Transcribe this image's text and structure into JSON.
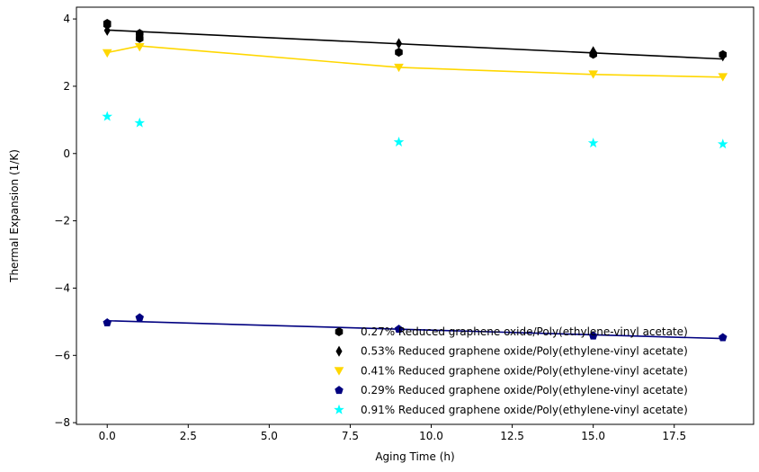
{
  "chart_data": {
    "type": "scatter",
    "xlabel": "Aging Time (h)",
    "ylabel": "Thermal Expansion (1/K)",
    "xlim": [
      -0.95,
      19.95
    ],
    "ylim": [
      -8.05,
      4.35
    ],
    "xticks": [
      0.0,
      2.5,
      5.0,
      7.5,
      10.0,
      12.5,
      15.0,
      17.5
    ],
    "xtick_labels": [
      "0.0",
      "2.5",
      "5.0",
      "7.5",
      "10.0",
      "12.5",
      "15.0",
      "17.5"
    ],
    "yticks": [
      -8,
      -6,
      -4,
      -2,
      0,
      2,
      4
    ],
    "ytick_labels": [
      "−8",
      "−6",
      "−4",
      "−2",
      "0",
      "2",
      "4"
    ],
    "grid": false,
    "legend_position": "lower-right",
    "series": [
      {
        "name": "0.27% Reduced graphene oxide/Poly(ethylene-vinyl acetate)",
        "color": "#000000",
        "marker": "hexagon",
        "x": [
          0,
          0,
          1,
          1,
          9,
          15,
          19
        ],
        "y": [
          3.87,
          3.83,
          3.57,
          3.42,
          3.01,
          2.95,
          2.94
        ],
        "fit_line": {
          "x": [
            0,
            19
          ],
          "y": [
            3.67,
            2.81
          ]
        }
      },
      {
        "name": "0.53% Reduced graphene oxide/Poly(ethylene-vinyl acetate)",
        "color": "#000000",
        "marker": "thin-diamond",
        "x": [
          0,
          1,
          9,
          15,
          19
        ],
        "y": [
          3.66,
          3.55,
          3.27,
          3.03,
          2.9
        ],
        "fit_line": null
      },
      {
        "name": "0.41% Reduced graphene oxide/Poly(ethylene-vinyl acetate)",
        "color": "#FFD700",
        "marker": "triangle-down",
        "x": [
          0,
          1,
          9,
          15,
          19
        ],
        "y": [
          2.99,
          3.17,
          2.56,
          2.36,
          2.28
        ],
        "fit_line": {
          "x": [
            0,
            1,
            9,
            15,
            19
          ],
          "y": [
            3.0,
            3.2,
            2.56,
            2.35,
            2.27
          ]
        }
      },
      {
        "name": "0.29% Reduced graphene oxide/Poly(ethylene-vinyl acetate)",
        "color": "#000080",
        "marker": "pentagon",
        "x": [
          0,
          1,
          9,
          15,
          19
        ],
        "y": [
          -5.03,
          -4.88,
          -5.22,
          -5.42,
          -5.47
        ],
        "fit_line": {
          "x": [
            0,
            19
          ],
          "y": [
            -4.97,
            -5.5
          ]
        }
      },
      {
        "name": "0.91% Reduced graphene oxide/Poly(ethylene-vinyl acetate)",
        "color": "#00FFFF",
        "marker": "star",
        "x": [
          0,
          1,
          9,
          15,
          19
        ],
        "y": [
          1.1,
          0.91,
          0.34,
          0.31,
          0.28
        ],
        "fit_line": null
      }
    ]
  }
}
